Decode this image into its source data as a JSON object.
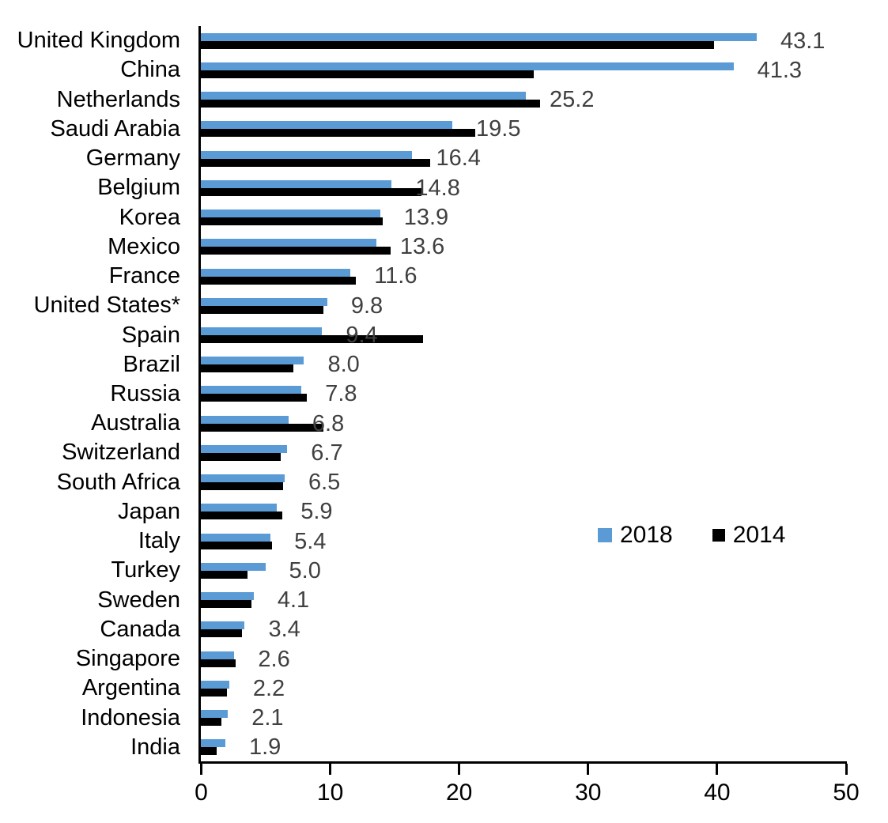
{
  "chart_data": {
    "type": "bar",
    "orientation": "horizontal",
    "title": "",
    "xlabel": "",
    "ylabel": "",
    "xlim": [
      0,
      50
    ],
    "x_ticks": [
      "0",
      "10",
      "20",
      "30",
      "40",
      "50"
    ],
    "grid": false,
    "legend_position": "right-middle",
    "data_label_series": "2018",
    "data_label_color": "#404040",
    "axis_color": "#000000",
    "categories": [
      "United Kingdom",
      "China",
      "Netherlands",
      "Saudi Arabia",
      "Germany",
      "Belgium",
      "Korea",
      "Mexico",
      "France",
      "United States*",
      "Spain",
      "Brazil",
      "Russia",
      "Australia",
      "Switzerland",
      "South Africa",
      "Japan",
      "Italy",
      "Turkey",
      "Sweden",
      "Canada",
      "Singapore",
      "Argentina",
      "Indonesia",
      "India"
    ],
    "series": [
      {
        "name": "2018",
        "color": "#5B9BD5",
        "values": [
          43.1,
          41.3,
          25.2,
          19.5,
          16.4,
          14.8,
          13.9,
          13.6,
          11.6,
          9.8,
          9.4,
          8.0,
          7.8,
          6.8,
          6.7,
          6.5,
          5.9,
          5.4,
          5.0,
          4.1,
          3.4,
          2.6,
          2.2,
          2.1,
          1.9
        ],
        "labels": [
          "43.1",
          "41.3",
          "25.2",
          "19.5",
          "16.4",
          "14.8",
          "13.9",
          "13.6",
          "11.6",
          "9.8",
          "9.4",
          "8.0",
          "7.8",
          "6.8",
          "6.7",
          "6.5",
          "5.9",
          "5.4",
          "5.0",
          "4.1",
          "3.4",
          "2.6",
          "2.2",
          "2.1",
          "1.9"
        ]
      },
      {
        "name": "2014",
        "color": "#000000",
        "values": [
          39.8,
          25.8,
          26.3,
          21.3,
          17.8,
          17.1,
          14.1,
          14.7,
          12.0,
          9.5,
          17.2,
          7.2,
          8.2,
          9.5,
          6.2,
          6.4,
          6.3,
          5.5,
          3.6,
          3.9,
          3.2,
          2.7,
          2.0,
          1.6,
          1.2
        ]
      }
    ]
  },
  "legend": {
    "items": [
      {
        "label": "2018",
        "color": "#5B9BD5"
      },
      {
        "label": "2014",
        "color": "#000000"
      }
    ]
  }
}
